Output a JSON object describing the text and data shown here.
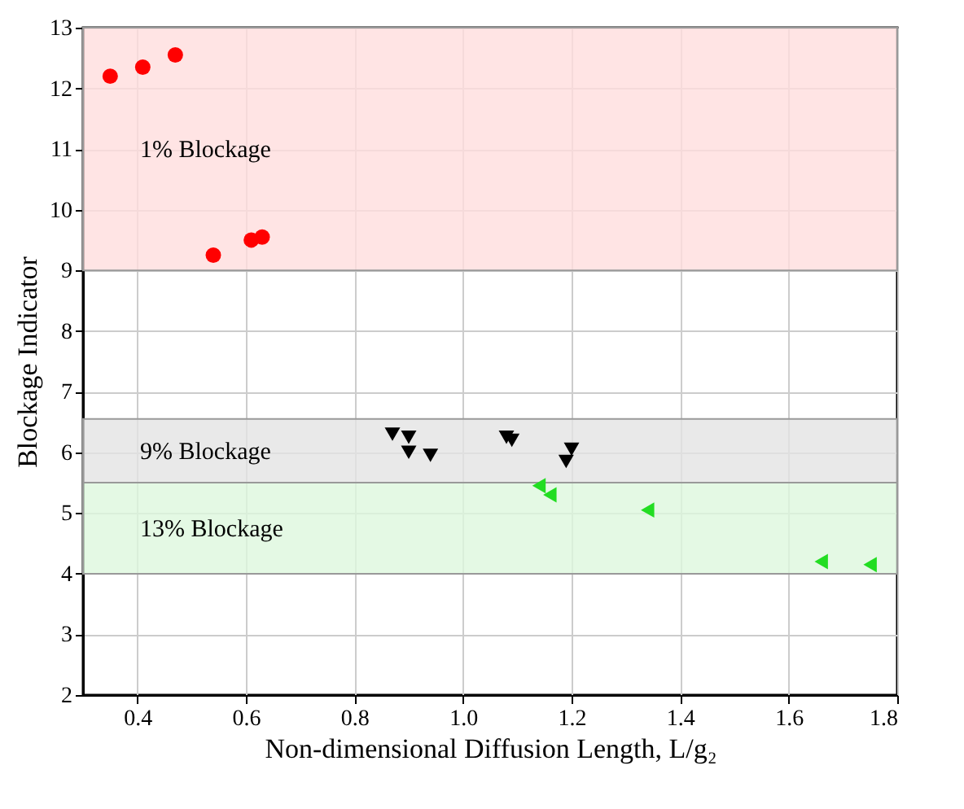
{
  "chart_data": {
    "type": "scatter",
    "xlabel": "Non-dimensional Diffusion Length, L/g₂",
    "ylabel": "Blockage Indicator",
    "xlim": [
      0.3,
      1.8
    ],
    "xticks": [
      0.4,
      0.6,
      0.8,
      {
        "value": 1,
        "label": "1.0"
      },
      1.2,
      1.4,
      1.6,
      1.8
    ],
    "ylim": [
      2,
      13
    ],
    "yticks": [
      2,
      3,
      4,
      5,
      6,
      7,
      8,
      9,
      10,
      11,
      12,
      13
    ],
    "grid": true,
    "bands": [
      {
        "axis": "y",
        "from": 9,
        "to": 13,
        "label": "1% Blockage",
        "color": "#ffdddd"
      },
      {
        "axis": "y",
        "from": 5.5,
        "to": 6.55,
        "label": "9% Blockage",
        "color": "#e4e4e4"
      },
      {
        "axis": "y",
        "from": 4,
        "to": 5.5,
        "label": "13% Blockage",
        "color": "#ddf7dd"
      }
    ],
    "series": [
      {
        "color": "#ff0000",
        "marker": "circle",
        "x": [
          0.35,
          0.41,
          0.47,
          0.54,
          0.61,
          0.63
        ],
        "values": [
          12.2,
          12.35,
          12.55,
          9.25,
          9.5,
          9.55
        ]
      },
      {
        "color": "#000000",
        "marker": "triangle-down",
        "x": [
          0.87,
          0.9,
          0.9,
          0.94,
          1.08,
          1.09,
          1.19,
          1.2
        ],
        "values": [
          6.3,
          6.25,
          6.0,
          5.95,
          6.25,
          6.2,
          5.85,
          6.05
        ]
      },
      {
        "color": "#22dd22",
        "marker": "triangle-left",
        "x": [
          1.14,
          1.16,
          1.34,
          1.66,
          1.75
        ],
        "values": [
          5.45,
          5.3,
          5.05,
          4.2,
          4.15
        ]
      }
    ]
  }
}
